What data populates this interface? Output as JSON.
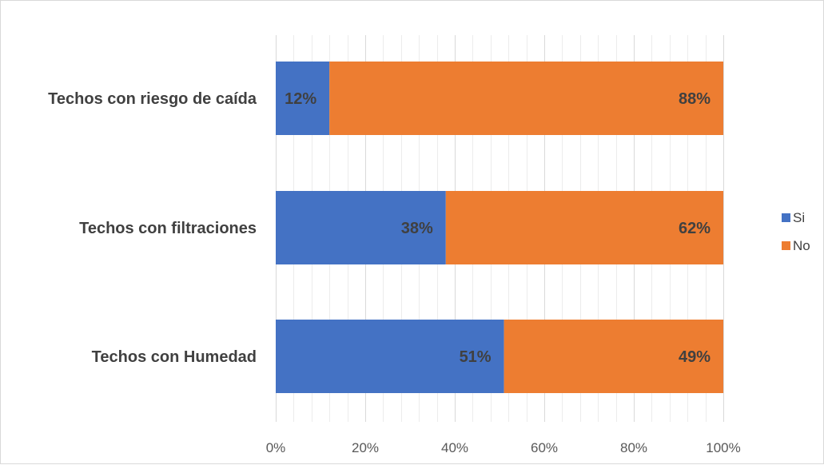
{
  "chart_data": {
    "type": "bar",
    "orientation": "horizontal",
    "stacked": "percent",
    "categories": [
      "Techos con riesgo de caída",
      "Techos con filtraciones",
      "Techos con Humedad"
    ],
    "series": [
      {
        "name": "Si",
        "color": "#4472C4",
        "values": [
          12,
          38,
          51
        ],
        "labels": [
          "12%",
          "38%",
          "51%"
        ]
      },
      {
        "name": "No",
        "color": "#ED7D31",
        "values": [
          88,
          62,
          49
        ],
        "labels": [
          "88%",
          "62%",
          "49%"
        ]
      }
    ],
    "xaxis": {
      "ticks": [
        0,
        20,
        40,
        60,
        80,
        100
      ],
      "tick_labels": [
        "0%",
        "20%",
        "40%",
        "60%",
        "80%",
        "100%"
      ],
      "xlim": [
        0,
        100
      ]
    },
    "gridlines": true,
    "legend_position": "right",
    "title": "",
    "xlabel": "",
    "ylabel": ""
  }
}
